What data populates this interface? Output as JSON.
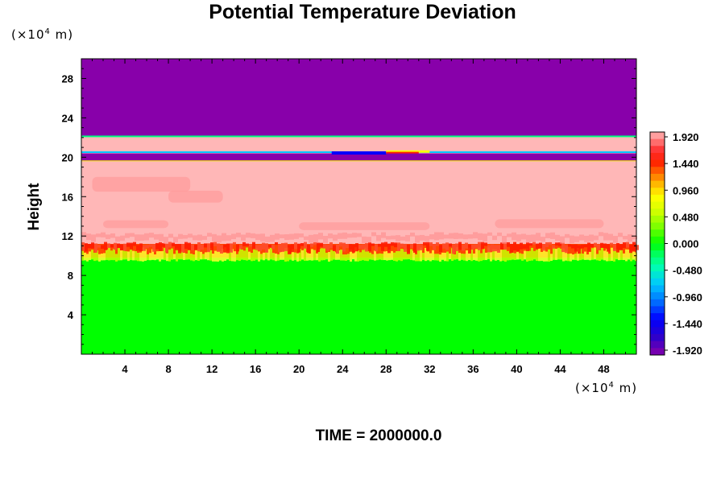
{
  "chart_data": {
    "type": "heatmap",
    "title": "Potential Temperature Deviation",
    "ylabel": "Height",
    "xlabel": "",
    "x_unit": "(×10⁴ m)",
    "y_unit": "(×10⁴ m)",
    "xlim": [
      0,
      51
    ],
    "ylim": [
      0,
      30
    ],
    "x_ticks": [
      "4",
      "8",
      "12",
      "16",
      "20",
      "24",
      "28",
      "32",
      "36",
      "40",
      "44",
      "48"
    ],
    "y_ticks": [
      "4",
      "8",
      "12",
      "16",
      "20",
      "24",
      "28"
    ],
    "colorbar": {
      "min": -1.92,
      "max": 1.92,
      "tick_labels": [
        "1.920",
        "1.440",
        "0.960",
        "0.480",
        "0.000",
        "-0.480",
        "-0.960",
        "-1.440",
        "-1.920"
      ]
    },
    "layers": [
      {
        "y_from": 0,
        "y_to": 9.8,
        "value": 0.0
      },
      {
        "y_from": 9.8,
        "y_to": 11.2,
        "value": 1.3
      },
      {
        "y_from": 11.2,
        "y_to": 19.6,
        "value": 1.92
      },
      {
        "y_from": 19.6,
        "y_to": 20.4,
        "value": -1.92
      },
      {
        "y_from": 20.4,
        "y_to": 22.1,
        "value": 1.92
      },
      {
        "y_from": 22.1,
        "y_to": 30,
        "value": -1.92
      }
    ],
    "footer": "TIME = 2000000.0"
  },
  "colors": {
    "max": "#ffb7b7",
    "neutral": "#00ff00",
    "min": "#9400aa"
  }
}
